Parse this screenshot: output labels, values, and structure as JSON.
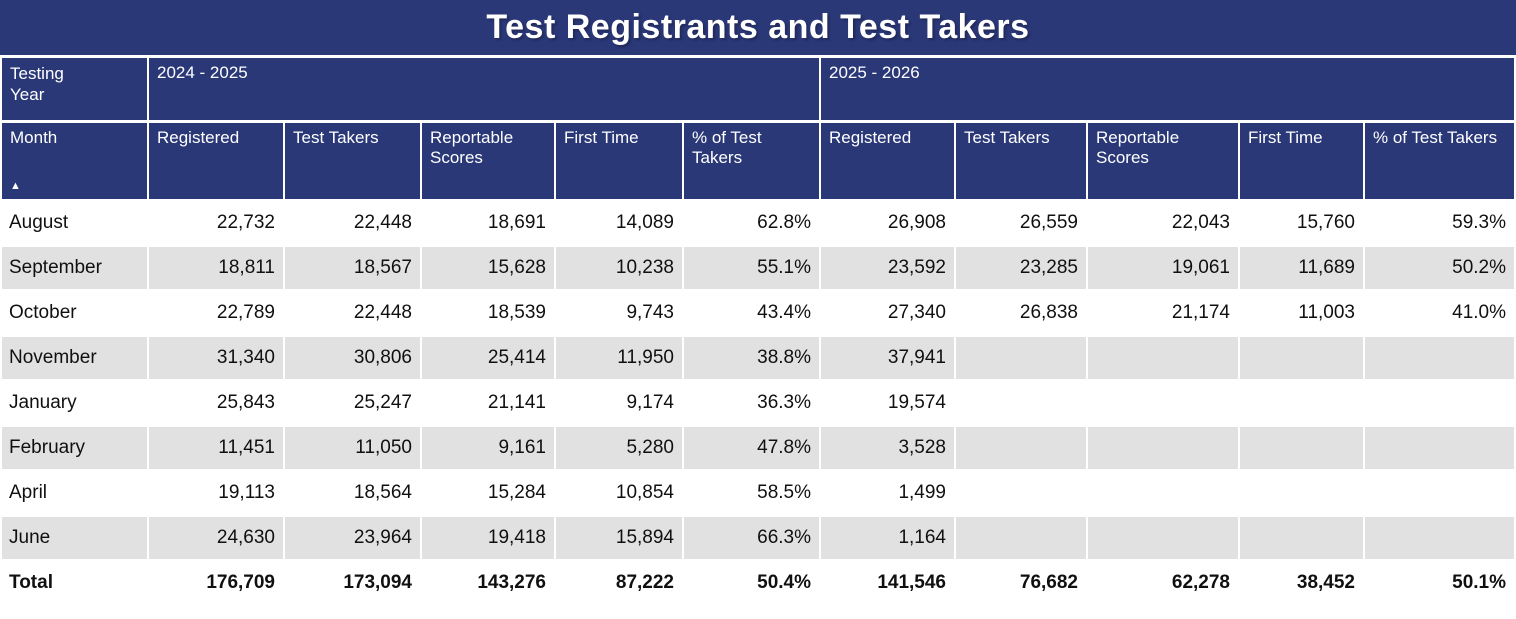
{
  "title": "Test Registrants and Test Takers",
  "colors": {
    "header_background": "#2A3878",
    "header_text": "#FFFFFF",
    "row_stripe": "#E1E1E1",
    "body_text": "#101010"
  },
  "chart_data": {
    "type": "table",
    "title": "Test Registrants and Test Takers",
    "corner_label": "Testing Year",
    "row_header": "Month",
    "sort": {
      "column": "Month",
      "direction": "ascending",
      "icon": "▲"
    },
    "year_groups": [
      "2024 - 2025",
      "2025 - 2026"
    ],
    "columns": [
      "Registered",
      "Test Takers",
      "Reportable Scores",
      "First Time",
      "% of Test Takers"
    ],
    "rows": [
      {
        "month": "August",
        "y2024": [
          "22,732",
          "22,448",
          "18,691",
          "14,089",
          "62.8%"
        ],
        "y2025": [
          "26,908",
          "26,559",
          "22,043",
          "15,760",
          "59.3%"
        ]
      },
      {
        "month": "September",
        "y2024": [
          "18,811",
          "18,567",
          "15,628",
          "10,238",
          "55.1%"
        ],
        "y2025": [
          "23,592",
          "23,285",
          "19,061",
          "11,689",
          "50.2%"
        ]
      },
      {
        "month": "October",
        "y2024": [
          "22,789",
          "22,448",
          "18,539",
          "9,743",
          "43.4%"
        ],
        "y2025": [
          "27,340",
          "26,838",
          "21,174",
          "11,003",
          "41.0%"
        ]
      },
      {
        "month": "November",
        "y2024": [
          "31,340",
          "30,806",
          "25,414",
          "11,950",
          "38.8%"
        ],
        "y2025": [
          "37,941",
          "",
          "",
          "",
          ""
        ]
      },
      {
        "month": "January",
        "y2024": [
          "25,843",
          "25,247",
          "21,141",
          "9,174",
          "36.3%"
        ],
        "y2025": [
          "19,574",
          "",
          "",
          "",
          ""
        ]
      },
      {
        "month": "February",
        "y2024": [
          "11,451",
          "11,050",
          "9,161",
          "5,280",
          "47.8%"
        ],
        "y2025": [
          "3,528",
          "",
          "",
          "",
          ""
        ]
      },
      {
        "month": "April",
        "y2024": [
          "19,113",
          "18,564",
          "15,284",
          "10,854",
          "58.5%"
        ],
        "y2025": [
          "1,499",
          "",
          "",
          "",
          ""
        ]
      },
      {
        "month": "June",
        "y2024": [
          "24,630",
          "23,964",
          "19,418",
          "15,894",
          "66.3%"
        ],
        "y2025": [
          "1,164",
          "",
          "",
          "",
          ""
        ]
      }
    ],
    "total_row": {
      "month": "Total",
      "y2024": [
        "176,709",
        "173,094",
        "143,276",
        "87,222",
        "50.4%"
      ],
      "y2025": [
        "141,546",
        "76,682",
        "62,278",
        "38,452",
        "50.1%"
      ]
    }
  }
}
